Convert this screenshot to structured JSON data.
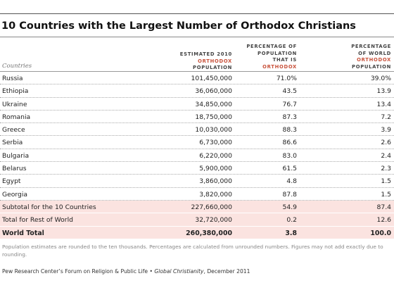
{
  "title": "10 Countries with the Largest Number of Orthodox Christians",
  "headers": {
    "countries": "Countries",
    "col1": {
      "line1": "Estimated 2010",
      "line2": "Orthodox",
      "line3": "Population"
    },
    "col2": {
      "line1": "Percentage of",
      "line2": "Population",
      "line3": "that is",
      "line4": "Orthodox"
    },
    "col3": {
      "line1": "Percentage",
      "line2": "of World",
      "line3": "Orthodox",
      "line4": "Population"
    }
  },
  "rows": [
    {
      "country": "Russia",
      "population": "101,450,000",
      "pct_pop": "71.0%",
      "pct_world": "39.0%"
    },
    {
      "country": "Ethiopia",
      "population": "36,060,000",
      "pct_pop": "43.5",
      "pct_world": "13.9"
    },
    {
      "country": "Ukraine",
      "population": "34,850,000",
      "pct_pop": "76.7",
      "pct_world": "13.4"
    },
    {
      "country": "Romania",
      "population": "18,750,000",
      "pct_pop": "87.3",
      "pct_world": "7.2"
    },
    {
      "country": "Greece",
      "population": "10,030,000",
      "pct_pop": "88.3",
      "pct_world": "3.9"
    },
    {
      "country": "Serbia",
      "population": "6,730,000",
      "pct_pop": "86.6",
      "pct_world": "2.6"
    },
    {
      "country": "Bulgaria",
      "population": "6,220,000",
      "pct_pop": "83.0",
      "pct_world": "2.4"
    },
    {
      "country": "Belarus",
      "population": "5,900,000",
      "pct_pop": "61.5",
      "pct_world": "2.3"
    },
    {
      "country": "Egypt",
      "population": "3,860,000",
      "pct_pop": "4.8",
      "pct_world": "1.5"
    },
    {
      "country": "Georgia",
      "population": "3,820,000",
      "pct_pop": "87.8",
      "pct_world": "1.5"
    }
  ],
  "subtotal": {
    "label": "Subtotal for the 10 Countries",
    "population": "227,660,000",
    "pct_pop": "54.9",
    "pct_world": "87.4"
  },
  "rest": {
    "label": "Total for Rest of World",
    "population": "32,720,000",
    "pct_pop": "0.2",
    "pct_world": "12.6"
  },
  "world": {
    "label": "World Total",
    "population": "260,380,000",
    "pct_pop": "3.8",
    "pct_world": "100.0"
  },
  "note": "Population estimates are rounded to the ten thousands. Percentages are calculated from unrounded numbers. Figures may not add exactly due to rounding.",
  "source": {
    "org": "Pew Research Center’s Forum on Religion & Public Life •",
    "publication": "Global Christianity",
    "date": ", December 2011"
  }
}
